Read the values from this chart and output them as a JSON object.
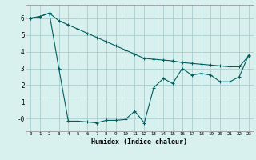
{
  "line1_x": [
    0,
    1,
    2,
    3,
    4,
    5,
    6,
    7,
    8,
    9,
    10,
    11,
    12,
    13,
    14,
    15,
    16,
    17,
    18,
    19,
    20,
    21,
    22,
    23
  ],
  "line1_y": [
    6.0,
    6.1,
    6.3,
    5.85,
    5.6,
    5.35,
    5.1,
    4.85,
    4.6,
    4.35,
    4.1,
    3.85,
    3.6,
    3.55,
    3.5,
    3.45,
    3.35,
    3.3,
    3.25,
    3.2,
    3.15,
    3.1,
    3.1,
    3.75
  ],
  "line2_x": [
    0,
    1,
    2,
    3,
    4,
    5,
    6,
    7,
    8,
    9,
    10,
    11,
    12,
    13,
    14,
    15,
    16,
    17,
    18,
    19,
    20,
    21,
    22,
    23
  ],
  "line2_y": [
    6.0,
    6.1,
    6.3,
    3.0,
    -0.15,
    -0.15,
    -0.2,
    -0.25,
    -0.1,
    -0.1,
    -0.05,
    0.45,
    -0.25,
    1.85,
    2.4,
    2.1,
    3.0,
    2.6,
    2.7,
    2.6,
    2.2,
    2.2,
    2.5,
    3.8
  ],
  "line_color": "#005f5f",
  "bg_color": "#d8f0ee",
  "grid_color": "#aacece",
  "xlabel": "Humidex (Indice chaleur)",
  "ytick_labels": [
    "-0",
    "1",
    "2",
    "3",
    "4",
    "5",
    "6"
  ],
  "yticks": [
    0,
    1,
    2,
    3,
    4,
    5,
    6
  ],
  "xticks": [
    0,
    1,
    2,
    3,
    4,
    5,
    6,
    7,
    8,
    9,
    10,
    11,
    12,
    13,
    14,
    15,
    16,
    17,
    18,
    19,
    20,
    21,
    22,
    23
  ],
  "ylim": [
    -0.75,
    6.8
  ],
  "xlim": [
    -0.5,
    23.5
  ]
}
